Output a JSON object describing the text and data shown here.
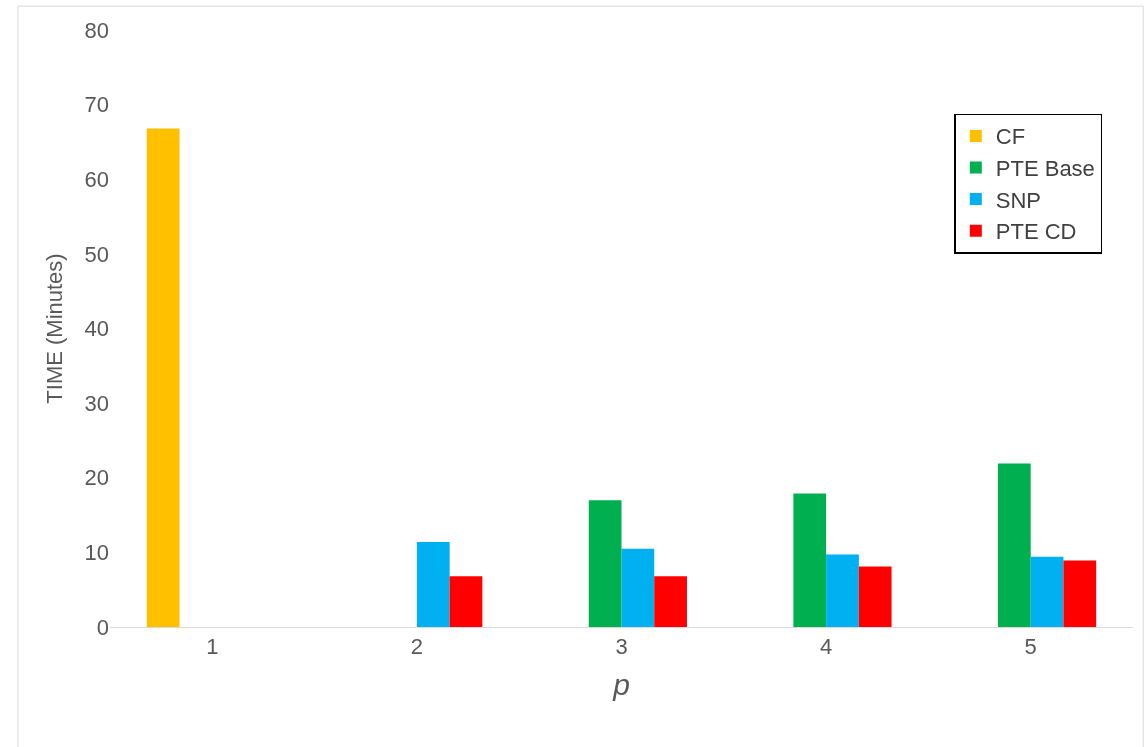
{
  "chart_data": {
    "type": "bar",
    "xlabel": "p",
    "ylabel": "TIME (Minutes)",
    "categories": [
      "1",
      "2",
      "3",
      "4",
      "5"
    ],
    "series": [
      {
        "name": "CF",
        "color": "#ffc000",
        "values": [
          66.8,
          null,
          null,
          null,
          null
        ]
      },
      {
        "name": "PTE Base",
        "color": "#00b050",
        "values": [
          null,
          null,
          17,
          17.9,
          21.9
        ]
      },
      {
        "name": "SNP",
        "color": "#00b0f0",
        "values": [
          null,
          11.4,
          10.5,
          9.7,
          9.4
        ]
      },
      {
        "name": "PTE CD",
        "color": "#ff0000",
        "values": [
          null,
          6.8,
          6.8,
          8.1,
          8.9
        ]
      }
    ],
    "ylim": [
      0,
      80
    ],
    "yticks": [
      0,
      10,
      20,
      30,
      40,
      50,
      60,
      70,
      80
    ],
    "legend": "top right"
  }
}
